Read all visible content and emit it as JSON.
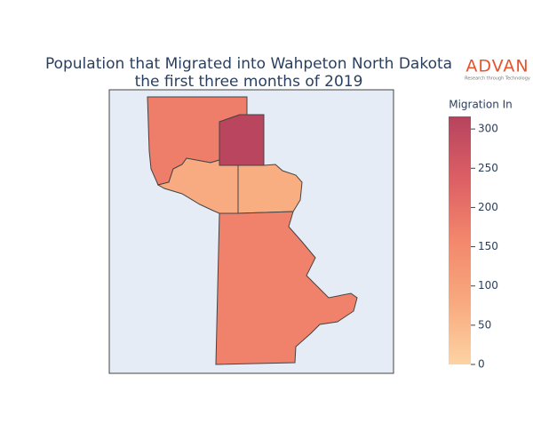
{
  "chart_data": {
    "type": "choropleth",
    "title": [
      "Population that Migrated into Wahpeton North Dakota",
      "the first three months of 2019"
    ],
    "logo": {
      "text": "ADVAN",
      "tagline": "Research through Technology"
    },
    "values": [
      175,
      310,
      75,
      70,
      170
    ],
    "zlim": [
      0,
      316
    ],
    "colorscale": [
      "#fdd3a4",
      "#f8a97e",
      "#f3876c",
      "#dc5f64",
      "#b6435e"
    ],
    "colorbar_title": "Migration In",
    "colorbar_ticks": [
      0,
      50,
      100,
      150,
      200,
      250,
      300
    ]
  }
}
